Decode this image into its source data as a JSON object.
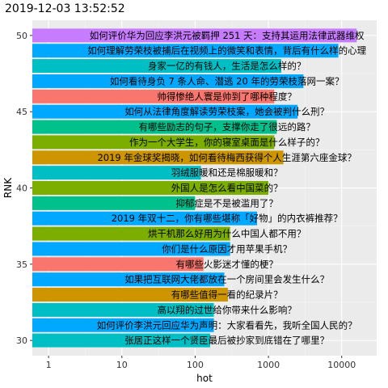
{
  "header": {
    "timestamp": "2019-12-03 13:52:52"
  },
  "chart_data": {
    "type": "bar",
    "orientation": "horizontal",
    "x_scale": "log10",
    "xlabel": "hot",
    "ylabel": "RNK",
    "xlim": [
      0.6,
      30000
    ],
    "ylim": [
      29,
      51
    ],
    "xticks": [
      1,
      10,
      100,
      1000,
      10000
    ],
    "xtick_labels": [
      "1",
      "10",
      "100",
      "1000",
      "10000"
    ],
    "yticks": [
      30,
      35,
      40,
      45,
      50
    ],
    "ytick_labels": [
      "30",
      "35",
      "40",
      "45",
      "50"
    ],
    "grid": true,
    "legend": "none",
    "bars": [
      {
        "rank": 50,
        "value": 16000,
        "color": "#C77CFF",
        "label": "如何评价华为回应李洪元被羁押 251 天：支持其运用法律武器维权"
      },
      {
        "rank": 49,
        "value": 9000,
        "color": "#00A9FF",
        "label": "如何理解劳荣枝被捕后在视频上的微笑和表情，背后有什么样的心理"
      },
      {
        "rank": 48,
        "value": 1500,
        "color": "#00BFC4",
        "label": "身家一亿的有钱人，生活是怎么样的？"
      },
      {
        "rank": 47,
        "value": 3000,
        "color": "#00A9FF",
        "label": "如何看待身负 7 条人命、潜逃 20 年的劳荣枝落网一案？"
      },
      {
        "rank": 46,
        "value": 1200,
        "color": "#F8766D",
        "label": "帅得惨绝人寰是帅到了哪种程度？"
      },
      {
        "rank": 45,
        "value": 2500,
        "color": "#00A9FF",
        "label": "如何从法律角度解读劳荣枝案，她会被判什么刑？"
      },
      {
        "rank": 44,
        "value": 1300,
        "color": "#00C08B",
        "label": "有哪些励志的句子，支撑你走了很远的路？"
      },
      {
        "rank": 43,
        "value": 1200,
        "color": "#7CAE00",
        "label": "作为一个大学生，你的寝室桌面是什么样子的？"
      },
      {
        "rank": 42,
        "value": 1600,
        "color": "#CD9600",
        "label": "2019 年金球奖揭晓，如何看待梅西获得个人生涯第六座金球？"
      },
      {
        "rank": 41,
        "value": 120,
        "color": "#00BFC4",
        "label": "羽绒服暖和还是棉服暖和？"
      },
      {
        "rank": 40,
        "value": 1000,
        "color": "#7CAE00",
        "label": "外国人是怎么看中国菜的？"
      },
      {
        "rank": 39,
        "value": 100,
        "color": "#00C08B",
        "label": "抑郁症是不是被滥用了？"
      },
      {
        "rank": 38,
        "value": 700,
        "color": "#00A9FF",
        "label": "2019 年双十二，你有哪些堪称「好物」的内衣裤推荐？"
      },
      {
        "rank": 37,
        "value": 300,
        "color": "#7CAE00",
        "label": "烘干机那么好用为什么中国人都不用？"
      },
      {
        "rank": 36,
        "value": 300,
        "color": "#00A9FF",
        "label": "你们是什么原因才用苹果手机？"
      },
      {
        "rank": 35,
        "value": 130,
        "color": "#F8766D",
        "label": "有哪些火影迷才懂的梗？"
      },
      {
        "rank": 34,
        "value": 250,
        "color": "#00A9FF",
        "label": "如果把互联网大佬都放在一个房间里会发生什么？"
      },
      {
        "rank": 33,
        "value": 280,
        "color": "#CD9600",
        "label": "有哪些值得一看的纪录片？"
      },
      {
        "rank": 32,
        "value": 180,
        "color": "#00BFC4",
        "label": "高以翔的过世给你带来什么影响？"
      },
      {
        "rank": 31,
        "value": 180,
        "color": "#00A9FF",
        "label": "如何评价李洪元回应华为声明：大家看看先，我听全国人民的？"
      },
      {
        "rank": 30,
        "value": 160,
        "color": "#00BFC4",
        "label": "张居正这样一个贤臣最后被抄家到底错在了哪里？"
      }
    ]
  }
}
